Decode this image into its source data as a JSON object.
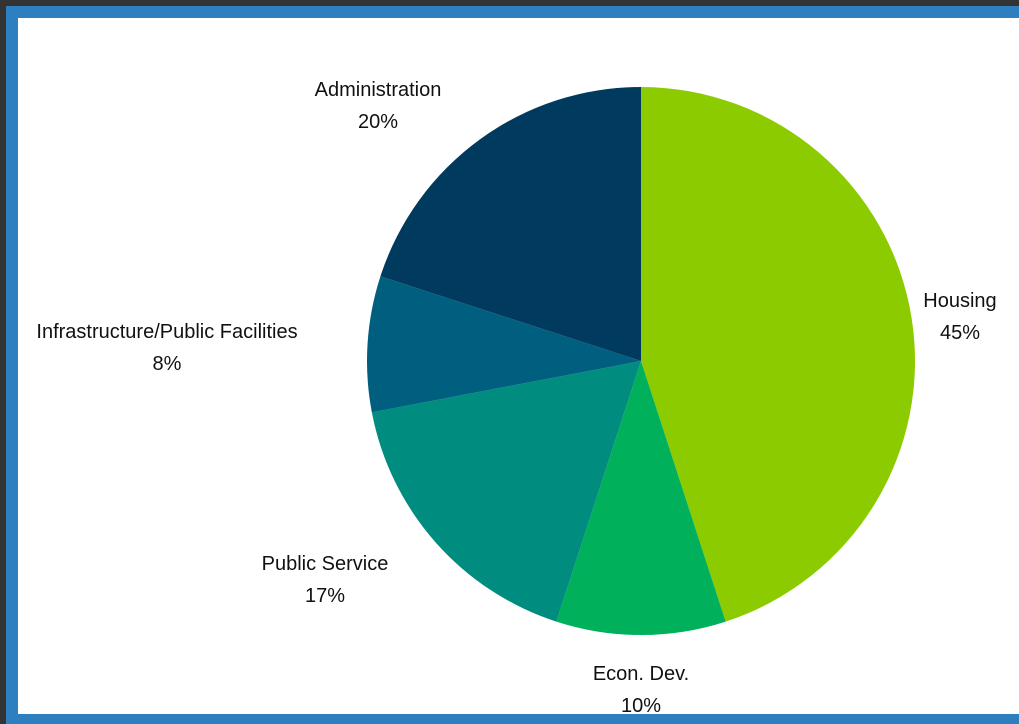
{
  "chart_data": {
    "type": "pie",
    "slices": [
      {
        "label": "Housing",
        "value": 45,
        "pct_label": "45%",
        "color": "#8ccb00"
      },
      {
        "label": "Econ. Dev.",
        "value": 10,
        "pct_label": "10%",
        "color": "#00b05a"
      },
      {
        "label": "Public Service",
        "value": 17,
        "pct_label": "17%",
        "color": "#008c7f"
      },
      {
        "label": "Infrastructure/Public Facilities",
        "value": 8,
        "pct_label": "8%",
        "color": "#005f7f"
      },
      {
        "label": "Administration",
        "value": 20,
        "pct_label": "20%",
        "color": "#003a5e"
      }
    ],
    "start": "12 o'clock",
    "direction": "clockwise",
    "legend": "none",
    "labels": "outside slices"
  },
  "colors": {
    "frame": "#2d7fc0",
    "page_background": "#333333",
    "chart_background": "#ffffff"
  }
}
